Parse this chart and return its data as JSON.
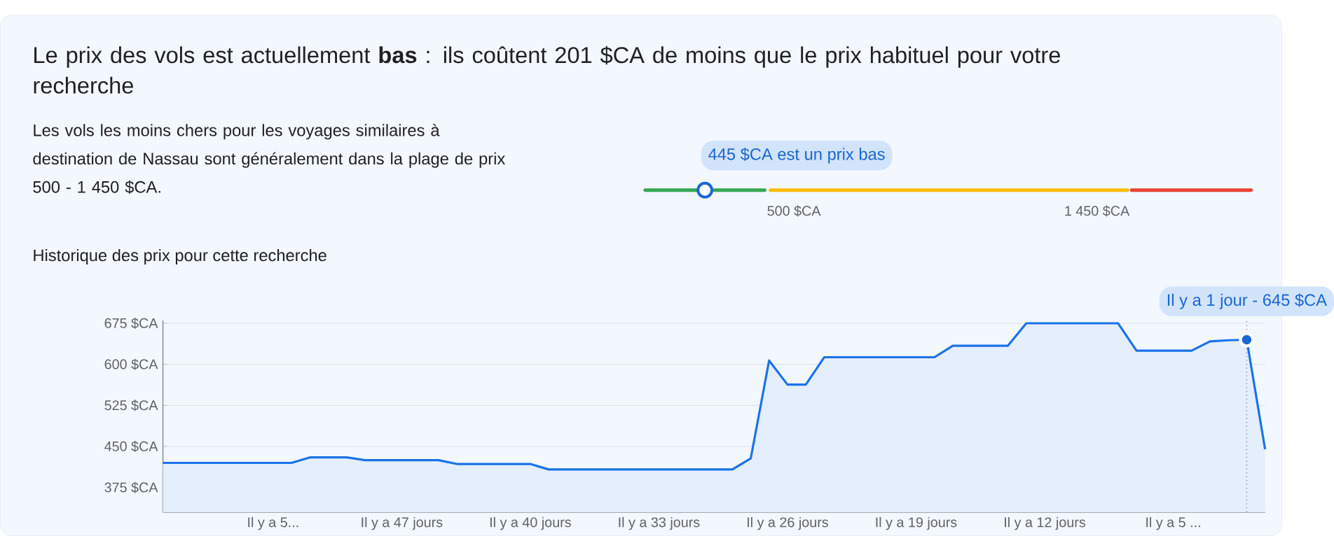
{
  "chart_data": {
    "type": "area",
    "title": "Historique des prix pour cette recherche",
    "annotations": [
      "Le prix des vols est actuellement **bas** : ils coûtent 201 $CA de moins que le prix habituel pour votre recherche",
      "Les vols les moins chers pour les voyages similaires à destination de Nassau sont généralement dans la plage de prix 500 - 1 450 $CA.",
      "445 $CA est un prix bas",
      "500 $CA",
      "1 450 $CA",
      {
        "text": "Il y a 1 jour - 645 $CA",
        "y": 645
      }
    ],
    "categories": [
      null,
      null,
      null,
      null,
      null,
      null,
      "Il y a 5...",
      null,
      null,
      null,
      null,
      null,
      null,
      "Il y a 47 jours",
      null,
      null,
      null,
      null,
      null,
      null,
      "Il y a 40 jours",
      null,
      null,
      null,
      null,
      null,
      null,
      "Il y a 33 jours",
      null,
      null,
      null,
      null,
      null,
      null,
      "Il y a 26 jours",
      null,
      null,
      null,
      null,
      null,
      null,
      "Il y a 19 jours",
      null,
      null,
      null,
      null,
      null,
      null,
      "Il y a 12 jours",
      null,
      null,
      null,
      null,
      null,
      null,
      "Il y a 5 ...",
      null,
      null,
      null,
      null,
      null
    ],
    "series": [
      {
        "color": "#1a73e8",
        "values": [
          420,
          420,
          420,
          420,
          420,
          420,
          420,
          420,
          430,
          430,
          430,
          425,
          425,
          425,
          425,
          425,
          418,
          418,
          418,
          418,
          418,
          408,
          408,
          408,
          408,
          408,
          408,
          408,
          408,
          408,
          408,
          408,
          428,
          607,
          563,
          563,
          613,
          613,
          613,
          613,
          613,
          613,
          613,
          634,
          634,
          634,
          634,
          675,
          675,
          675,
          675,
          675,
          675,
          625,
          625,
          625,
          625,
          642,
          644,
          645,
          445
        ]
      }
    ],
    "ylim": [
      330,
      680
    ],
    "yticks": [
      {
        "value": 375,
        "label": "375 $CA"
      },
      {
        "value": 450,
        "label": "450 $CA"
      },
      {
        "value": 525,
        "label": "525 $CA"
      },
      {
        "value": 600,
        "label": "600 $CA"
      },
      {
        "value": 675,
        "label": "675 $CA"
      }
    ],
    "grid": "y"
  }
}
